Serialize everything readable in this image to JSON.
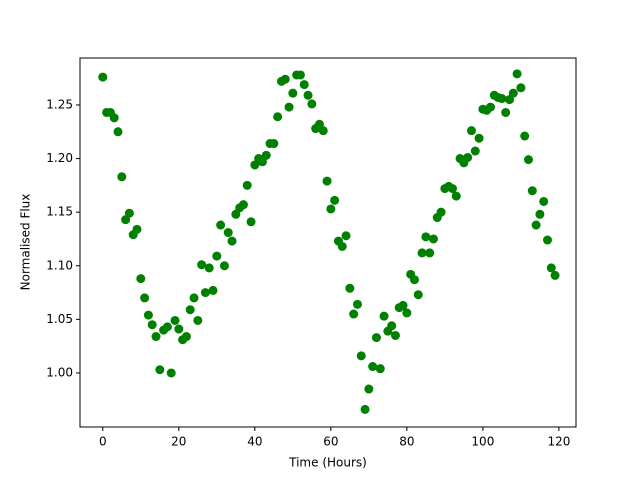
{
  "chart_data": {
    "type": "scatter",
    "x_label": "Time (Hours)",
    "y_label": "Normalised Flux",
    "x": [
      0,
      1,
      2,
      3,
      4,
      5,
      6,
      7,
      8,
      9,
      10,
      11,
      12,
      13,
      14,
      15,
      16,
      17,
      18,
      19,
      20,
      21,
      22,
      23,
      24,
      25,
      26,
      27,
      28,
      29,
      30,
      31,
      32,
      33,
      34,
      35,
      36,
      37,
      38,
      39,
      40,
      41,
      42,
      43,
      44,
      45,
      46,
      47,
      48,
      49,
      50,
      51,
      52,
      53,
      54,
      55,
      56,
      57,
      58,
      59,
      60,
      61,
      62,
      63,
      64,
      65,
      66,
      67,
      68,
      69,
      70,
      71,
      72,
      73,
      74,
      75,
      76,
      77,
      78,
      79,
      80,
      81,
      82,
      83,
      84,
      85,
      86,
      87,
      88,
      89,
      90,
      91,
      92,
      93,
      94,
      95,
      96,
      97,
      98,
      99,
      100,
      101,
      102,
      103,
      104,
      105,
      106,
      107,
      108,
      109,
      110,
      111,
      112,
      113,
      114,
      115,
      116,
      117,
      118,
      119
    ],
    "series": [
      {
        "color": "#008000",
        "values": [
          1.276,
          1.243,
          1.243,
          1.238,
          1.225,
          1.183,
          1.143,
          1.149,
          1.129,
          1.134,
          1.088,
          1.07,
          1.054,
          1.045,
          1.034,
          1.003,
          1.04,
          1.043,
          1.0,
          1.049,
          1.041,
          1.031,
          1.034,
          1.059,
          1.07,
          1.049,
          1.101,
          1.075,
          1.098,
          1.077,
          1.109,
          1.138,
          1.1,
          1.131,
          1.123,
          1.148,
          1.154,
          1.157,
          1.175,
          1.141,
          1.194,
          1.2,
          1.197,
          1.203,
          1.214,
          1.214,
          1.239,
          1.272,
          1.274,
          1.248,
          1.261,
          1.278,
          1.278,
          1.269,
          1.259,
          1.251,
          1.228,
          1.232,
          1.226,
          1.179,
          1.153,
          1.161,
          1.123,
          1.118,
          1.128,
          1.079,
          1.055,
          1.064,
          1.016,
          0.966,
          0.985,
          1.006,
          1.033,
          1.004,
          1.053,
          1.039,
          1.044,
          1.035,
          1.061,
          1.063,
          1.056,
          1.092,
          1.087,
          1.073,
          1.112,
          1.127,
          1.112,
          1.125,
          1.145,
          1.15,
          1.172,
          1.174,
          1.172,
          1.165,
          1.2,
          1.196,
          1.201,
          1.226,
          1.207,
          1.219,
          1.246,
          1.245,
          1.248,
          1.259,
          1.257,
          1.256,
          1.243,
          1.255,
          1.261,
          1.279,
          1.266,
          1.221,
          1.199,
          1.17,
          1.138,
          1.148,
          1.16,
          1.124,
          1.098,
          1.091
        ]
      }
    ],
    "xlim": [
      -6,
      124.5
    ],
    "ylim": [
      0.9496,
      1.2938
    ],
    "xticks": [
      0,
      20,
      40,
      60,
      80,
      100,
      120
    ],
    "yticks": [
      {
        "value": 1.0,
        "label": "1.00"
      },
      {
        "value": 1.05,
        "label": "1.05"
      },
      {
        "value": 1.1,
        "label": "1.10"
      },
      {
        "value": 1.15,
        "label": "1.15"
      },
      {
        "value": 1.2,
        "label": "1.20"
      },
      {
        "value": 1.25,
        "label": "1.25"
      }
    ],
    "grid": false
  }
}
